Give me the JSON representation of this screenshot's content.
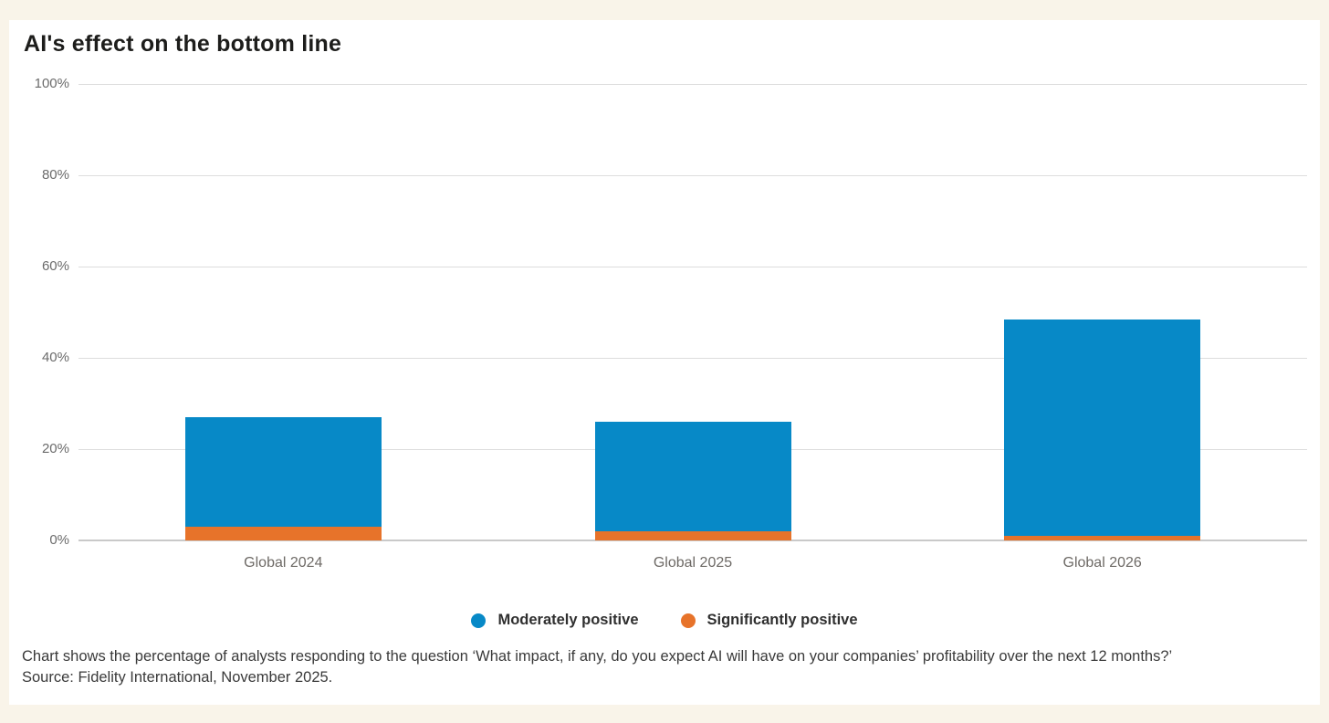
{
  "page": {
    "background_color": "#f9f4e9",
    "card_background": "#ffffff"
  },
  "title": "AI's effect on the bottom line",
  "chart_data": {
    "type": "bar",
    "stacked": true,
    "orientation": "vertical",
    "categories": [
      "Global 2024",
      "Global 2025",
      "Global 2026"
    ],
    "series": [
      {
        "name": "Moderately positive",
        "color": "#0789c7",
        "values": [
          24,
          24,
          47.5
        ]
      },
      {
        "name": "Significantly positive",
        "color": "#e7732a",
        "values": [
          3,
          2,
          1
        ]
      }
    ],
    "stack_order_bottom_to_top": [
      "Significantly positive",
      "Moderately positive"
    ],
    "y_ticks": [
      100,
      80,
      60,
      40,
      20,
      0
    ],
    "y_tick_suffix": "%",
    "ylim": [
      0,
      100
    ],
    "grid": true,
    "gridline_color": "#dddddd",
    "axis_line_color": "#c9c9c9",
    "legend_position": "bottom"
  },
  "footnote": {
    "line1": "Chart shows the percentage of analysts responding to the question ‘What impact, if any, do you expect AI will have on your companies’ profitability over the next 12 months?’",
    "line2": "Source: Fidelity International, November 2025."
  }
}
